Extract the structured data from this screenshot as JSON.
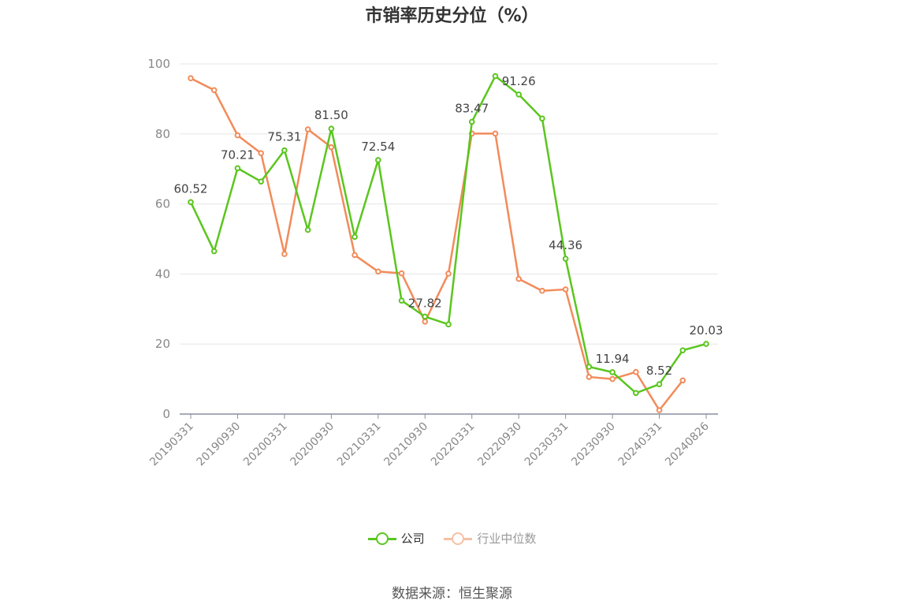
{
  "chart_data": {
    "type": "line",
    "title": "市销率历史分位（%）",
    "ylim": [
      0,
      100
    ],
    "yticks": [
      0,
      20,
      40,
      60,
      80,
      100
    ],
    "x_tick_labels": [
      "20190331",
      "20190930",
      "20200331",
      "20200930",
      "20210331",
      "20210930",
      "20220331",
      "20220930",
      "20230331",
      "20230930",
      "20240331",
      "20240826"
    ],
    "x": [
      "20190331",
      "20190630",
      "20190930",
      "20191231",
      "20200331",
      "20200630",
      "20200930",
      "20201231",
      "20210331",
      "20210630",
      "20210930",
      "20211231",
      "20220331",
      "20220630",
      "20220930",
      "20221231",
      "20230331",
      "20230630",
      "20230930",
      "20231231",
      "20240331",
      "20240630",
      "20240826"
    ],
    "grid": true,
    "legend_position": "bottom",
    "series": [
      {
        "name": "公司",
        "color": "#5ac61e",
        "values": [
          60.52,
          46.5,
          70.21,
          66.4,
          75.31,
          52.6,
          81.5,
          50.6,
          72.54,
          32.4,
          27.82,
          25.6,
          83.47,
          96.5,
          91.26,
          84.4,
          44.36,
          13.5,
          11.94,
          6.0,
          8.52,
          18.2,
          20.03
        ],
        "labels": [
          "60.52",
          null,
          "70.21",
          null,
          "75.31",
          null,
          "81.50",
          null,
          "72.54",
          null,
          "27.82",
          null,
          "83.47",
          null,
          "91.26",
          null,
          "44.36",
          null,
          "11.94",
          null,
          "8.52",
          null,
          "20.03"
        ]
      },
      {
        "name": "行业中位数",
        "color": "#f28b5a",
        "values": [
          95.9,
          92.5,
          79.6,
          74.5,
          45.7,
          81.3,
          76.2,
          45.4,
          40.7,
          40.2,
          26.4,
          40.1,
          80.1,
          80.1,
          38.6,
          35.2,
          35.6,
          10.6,
          10.0,
          12.0,
          1.1,
          9.6,
          null
        ]
      }
    ]
  },
  "legend": {
    "company_label": "公司",
    "industry_label": "行业中位数"
  },
  "source": "数据来源：恒生聚源"
}
